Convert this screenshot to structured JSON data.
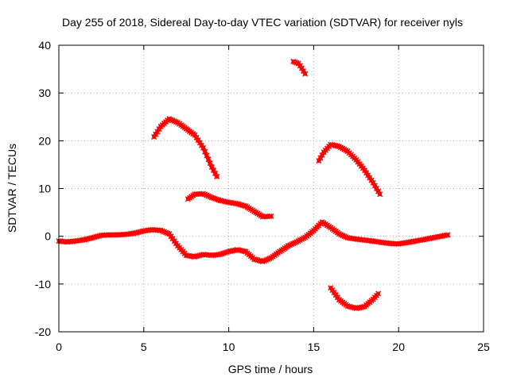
{
  "chart_data": {
    "type": "scatter",
    "title": "Day 255 of 2018, Sidereal Day-to-day VTEC variation (SDTVAR) for receiver nyls",
    "xlabel": "GPS time / hours",
    "ylabel": "SDTVAR / TECUs",
    "xlim": [
      0,
      25
    ],
    "ylim": [
      -20,
      40
    ],
    "xticks": [
      0,
      5,
      10,
      15,
      20,
      25
    ],
    "yticks": [
      -20,
      -10,
      0,
      10,
      20,
      30,
      40
    ],
    "grid": true,
    "marker_color": "#ff0000",
    "series": [
      {
        "name": "track-main",
        "points": [
          [
            0.0,
            -1.0
          ],
          [
            0.5,
            -1.2
          ],
          [
            1.0,
            -1.0
          ],
          [
            1.5,
            -0.7
          ],
          [
            2.0,
            -0.3
          ],
          [
            2.5,
            0.2
          ],
          [
            3.0,
            0.3
          ],
          [
            3.5,
            0.3
          ],
          [
            4.0,
            0.4
          ],
          [
            4.5,
            0.7
          ],
          [
            5.0,
            1.1
          ],
          [
            5.5,
            1.4
          ],
          [
            6.0,
            1.2
          ],
          [
            6.5,
            0.5
          ],
          [
            7.0,
            -2.0
          ],
          [
            7.5,
            -4.0
          ],
          [
            8.0,
            -4.3
          ],
          [
            8.5,
            -3.8
          ],
          [
            9.0,
            -4.0
          ],
          [
            9.5,
            -3.8
          ],
          [
            10.0,
            -3.2
          ],
          [
            10.5,
            -2.8
          ],
          [
            11.0,
            -3.2
          ],
          [
            11.5,
            -4.8
          ],
          [
            12.0,
            -5.3
          ],
          [
            12.5,
            -4.5
          ],
          [
            13.0,
            -3.2
          ],
          [
            13.5,
            -2.0
          ],
          [
            14.0,
            -1.2
          ],
          [
            14.5,
            -0.2
          ],
          [
            15.0,
            1.2
          ],
          [
            15.5,
            3.0
          ],
          [
            16.0,
            1.8
          ],
          [
            16.5,
            0.5
          ],
          [
            17.0,
            -0.3
          ],
          [
            17.5,
            -0.6
          ],
          [
            18.0,
            -0.8
          ],
          [
            18.5,
            -1.0
          ],
          [
            19.0,
            -1.3
          ],
          [
            19.5,
            -1.5
          ],
          [
            20.0,
            -1.6
          ],
          [
            20.5,
            -1.3
          ],
          [
            21.0,
            -1.0
          ],
          [
            21.5,
            -0.7
          ],
          [
            22.0,
            -0.3
          ],
          [
            22.5,
            0.0
          ],
          [
            22.9,
            0.3
          ]
        ]
      },
      {
        "name": "track-arc-1",
        "points": [
          [
            5.6,
            20.8
          ],
          [
            6.0,
            23.0
          ],
          [
            6.5,
            24.6
          ],
          [
            7.0,
            23.8
          ],
          [
            7.5,
            22.5
          ],
          [
            8.0,
            21.2
          ],
          [
            8.5,
            18.5
          ],
          [
            9.0,
            14.5
          ],
          [
            9.3,
            12.5
          ]
        ]
      },
      {
        "name": "track-arc-2",
        "points": [
          [
            7.6,
            7.8
          ],
          [
            8.0,
            8.8
          ],
          [
            8.5,
            8.9
          ],
          [
            9.0,
            8.1
          ],
          [
            9.5,
            7.5
          ],
          [
            10.0,
            7.1
          ],
          [
            10.5,
            6.8
          ],
          [
            11.0,
            6.3
          ],
          [
            11.5,
            5.2
          ],
          [
            12.0,
            4.1
          ],
          [
            12.5,
            4.2
          ]
        ]
      },
      {
        "name": "track-arc-3",
        "points": [
          [
            13.8,
            36.6
          ],
          [
            14.1,
            36.2
          ],
          [
            14.3,
            35.2
          ],
          [
            14.5,
            34.0
          ]
        ]
      },
      {
        "name": "track-arc-4",
        "points": [
          [
            15.3,
            15.8
          ],
          [
            15.6,
            17.6
          ],
          [
            16.0,
            19.2
          ],
          [
            16.5,
            18.8
          ],
          [
            17.0,
            17.8
          ],
          [
            17.5,
            16.0
          ],
          [
            18.0,
            13.8
          ],
          [
            18.5,
            11.2
          ],
          [
            18.9,
            8.8
          ]
        ]
      },
      {
        "name": "track-arc-5",
        "points": [
          [
            16.0,
            -10.8
          ],
          [
            16.5,
            -13.3
          ],
          [
            17.0,
            -14.6
          ],
          [
            17.5,
            -15.1
          ],
          [
            18.0,
            -14.7
          ],
          [
            18.5,
            -13.2
          ],
          [
            18.8,
            -12.0
          ]
        ]
      }
    ]
  }
}
